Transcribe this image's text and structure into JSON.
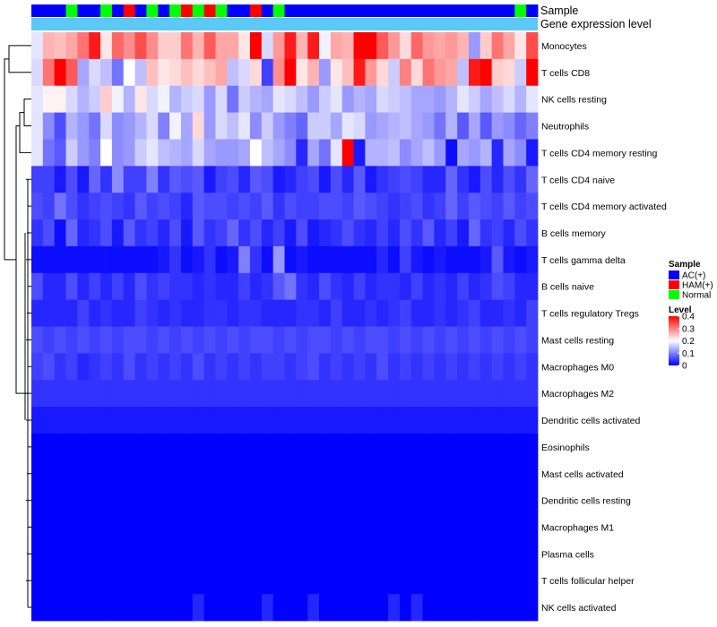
{
  "chart_data": {
    "type": "heatmap",
    "title": "",
    "annotation_labels": {
      "sample": "Sample",
      "expression": "Gene expression level"
    },
    "sample_legend": {
      "title": "Sample",
      "entries": [
        {
          "label": "AC(+)",
          "color": "#0000ff"
        },
        {
          "label": "HAM(+)",
          "color": "#ff0000"
        },
        {
          "label": "Normal",
          "color": "#00ff00"
        }
      ]
    },
    "level_legend": {
      "title": "Level",
      "min": 0,
      "max": 0.4,
      "ticks": [
        {
          "label": "0.4",
          "value": 0.4
        },
        {
          "label": "0.3",
          "value": 0.3
        },
        {
          "label": "0.2",
          "value": 0.2
        },
        {
          "label": "0.1",
          "value": 0.1
        },
        {
          "label": "0",
          "value": 0
        }
      ],
      "colors": [
        "#0000ff",
        "#ffffff",
        "#ff0000"
      ]
    },
    "expression_bar_color": "#5bc8f5",
    "sample_groups": [
      "AC(+)",
      "AC(+)",
      "AC(+)",
      "Normal",
      "AC(+)",
      "AC(+)",
      "Normal",
      "AC(+)",
      "HAM(+)",
      "AC(+)",
      "Normal",
      "AC(+)",
      "Normal",
      "HAM(+)",
      "Normal",
      "HAM(+)",
      "Normal",
      "AC(+)",
      "AC(+)",
      "HAM(+)",
      "AC(+)",
      "Normal",
      "AC(+)",
      "AC(+)",
      "AC(+)",
      "AC(+)",
      "AC(+)",
      "AC(+)",
      "AC(+)",
      "AC(+)",
      "AC(+)",
      "AC(+)",
      "AC(+)",
      "AC(+)",
      "AC(+)",
      "AC(+)",
      "AC(+)",
      "AC(+)",
      "AC(+)",
      "AC(+)",
      "AC(+)",
      "AC(+)",
      "Normal",
      "AC(+)"
    ],
    "row_labels": [
      "Monocytes",
      "T cells CD8",
      "NK cells resting",
      "Neutrophils",
      "T cells CD4 memory resting",
      "T cells CD4 naive",
      "T cells CD4 memory activated",
      "B cells memory",
      "T cells gamma delta",
      "B cells naive",
      "T cells regulatory  Tregs",
      "Mast cells resting",
      "Macrophages M0",
      "Macrophages M2",
      "Dendritic cells activated",
      "Eosinophils",
      "Mast cells activated",
      "Dendritic cells resting",
      "Macrophages M1",
      "Plasma cells",
      "T cells follicular helper",
      "NK cells activated"
    ],
    "values": [
      [
        0.18,
        0.26,
        0.25,
        0.27,
        0.31,
        0.38,
        0.22,
        0.32,
        0.29,
        0.34,
        0.29,
        0.24,
        0.24,
        0.31,
        0.26,
        0.33,
        0.27,
        0.27,
        0.22,
        0.4,
        0.17,
        0.28,
        0.38,
        0.26,
        0.38,
        0.19,
        0.27,
        0.26,
        0.4,
        0.4,
        0.33,
        0.28,
        0.23,
        0.32,
        0.28,
        0.27,
        0.28,
        0.26,
        0.12,
        0.24,
        0.31,
        0.27,
        0.22,
        0.34
      ],
      [
        0.17,
        0.31,
        0.4,
        0.33,
        0.13,
        0.17,
        0.15,
        0.09,
        0.2,
        0.15,
        0.25,
        0.22,
        0.23,
        0.25,
        0.23,
        0.25,
        0.27,
        0.15,
        0.17,
        0.23,
        0.05,
        0.29,
        0.4,
        0.22,
        0.26,
        0.12,
        0.22,
        0.25,
        0.38,
        0.28,
        0.23,
        0.16,
        0.3,
        0.23,
        0.31,
        0.28,
        0.27,
        0.15,
        0.38,
        0.4,
        0.24,
        0.23,
        0.16,
        0.4
      ],
      [
        0.18,
        0.21,
        0.21,
        0.17,
        0.14,
        0.16,
        0.24,
        0.19,
        0.14,
        0.22,
        0.17,
        0.19,
        0.14,
        0.16,
        0.17,
        0.12,
        0.17,
        0.09,
        0.16,
        0.14,
        0.13,
        0.18,
        0.17,
        0.15,
        0.12,
        0.16,
        0.18,
        0.12,
        0.14,
        0.13,
        0.17,
        0.16,
        0.15,
        0.13,
        0.13,
        0.12,
        0.14,
        0.18,
        0.16,
        0.13,
        0.15,
        0.17,
        0.14,
        0.18
      ],
      [
        0.18,
        0.11,
        0.06,
        0.14,
        0.12,
        0.09,
        0.17,
        0.11,
        0.12,
        0.14,
        0.17,
        0.1,
        0.19,
        0.13,
        0.23,
        0.12,
        0.17,
        0.15,
        0.18,
        0.11,
        0.16,
        0.12,
        0.1,
        0.08,
        0.16,
        0.16,
        0.13,
        0.18,
        0.17,
        0.12,
        0.13,
        0.14,
        0.15,
        0.13,
        0.12,
        0.09,
        0.14,
        0.07,
        0.13,
        0.07,
        0.12,
        0.11,
        0.08,
        0.1
      ],
      [
        0.18,
        0.09,
        0.07,
        0.16,
        0.12,
        0.1,
        0.2,
        0.11,
        0.12,
        0.16,
        0.18,
        0.15,
        0.14,
        0.13,
        0.17,
        0.13,
        0.12,
        0.12,
        0.13,
        0.2,
        0.15,
        0.13,
        0.11,
        0.03,
        0.13,
        0.09,
        0.18,
        0.4,
        0.02,
        0.14,
        0.14,
        0.15,
        0.11,
        0.13,
        0.15,
        0.12,
        0.01,
        0.13,
        0.12,
        0.14,
        0.03,
        0.13,
        0.11,
        0.02
      ],
      [
        0.05,
        0.05,
        0.02,
        0.06,
        0.02,
        0.08,
        0.04,
        0.11,
        0.05,
        0.05,
        0.1,
        0.04,
        0.07,
        0.06,
        0.07,
        0.02,
        0.05,
        0.06,
        0.03,
        0.07,
        0.06,
        0.02,
        0.03,
        0.05,
        0.06,
        0.02,
        0.06,
        0.03,
        0.07,
        0.02,
        0.04,
        0.05,
        0.06,
        0.05,
        0.03,
        0.03,
        0.08,
        0.04,
        0.02,
        0.06,
        0.03,
        0.06,
        0.04,
        0.08
      ],
      [
        0.06,
        0.05,
        0.09,
        0.06,
        0.04,
        0.05,
        0.06,
        0.05,
        0.04,
        0.07,
        0.05,
        0.06,
        0.05,
        0.03,
        0.07,
        0.06,
        0.06,
        0.05,
        0.06,
        0.05,
        0.07,
        0.04,
        0.06,
        0.05,
        0.05,
        0.06,
        0.06,
        0.05,
        0.07,
        0.06,
        0.05,
        0.04,
        0.05,
        0.06,
        0.04,
        0.05,
        0.08,
        0.05,
        0.07,
        0.06,
        0.05,
        0.07,
        0.05,
        0.06
      ],
      [
        0.04,
        0.06,
        0.01,
        0.08,
        0.03,
        0.04,
        0.06,
        0.02,
        0.07,
        0.04,
        0.05,
        0.03,
        0.06,
        0.02,
        0.07,
        0.04,
        0.05,
        0.08,
        0.04,
        0.06,
        0.03,
        0.05,
        0.02,
        0.06,
        0.02,
        0.03,
        0.04,
        0.06,
        0.04,
        0.03,
        0.05,
        0.03,
        0.06,
        0.04,
        0.07,
        0.03,
        0.05,
        0.02,
        0.08,
        0.04,
        0.05,
        0.03,
        0.06,
        0.04
      ],
      [
        0.01,
        0.01,
        0.01,
        0.01,
        0.01,
        0.01,
        0.01,
        0.01,
        0.01,
        0.01,
        0.01,
        0.02,
        0.04,
        0.01,
        0.02,
        0.04,
        0.01,
        0.02,
        0.1,
        0.04,
        0.01,
        0.12,
        0.01,
        0.02,
        0.01,
        0.01,
        0.01,
        0.01,
        0.01,
        0.01,
        0.03,
        0.01,
        0.05,
        0.02,
        0.01,
        0.02,
        0.01,
        0.01,
        0.01,
        0.02,
        0.07,
        0.02,
        0.01,
        0.02
      ],
      [
        0.06,
        0.03,
        0.03,
        0.06,
        0.03,
        0.05,
        0.03,
        0.05,
        0.03,
        0.06,
        0.04,
        0.05,
        0.04,
        0.04,
        0.03,
        0.04,
        0.03,
        0.03,
        0.05,
        0.03,
        0.04,
        0.07,
        0.09,
        0.04,
        0.03,
        0.06,
        0.04,
        0.03,
        0.05,
        0.03,
        0.04,
        0.04,
        0.03,
        0.05,
        0.03,
        0.04,
        0.03,
        0.05,
        0.03,
        0.04,
        0.06,
        0.05,
        0.03,
        0.03
      ],
      [
        0.03,
        0.03,
        0.03,
        0.03,
        0.05,
        0.03,
        0.04,
        0.03,
        0.03,
        0.05,
        0.04,
        0.03,
        0.04,
        0.03,
        0.03,
        0.04,
        0.04,
        0.03,
        0.04,
        0.04,
        0.03,
        0.03,
        0.03,
        0.04,
        0.04,
        0.03,
        0.05,
        0.03,
        0.03,
        0.04,
        0.03,
        0.04,
        0.05,
        0.03,
        0.03,
        0.04,
        0.03,
        0.04,
        0.05,
        0.03,
        0.03,
        0.04,
        0.03,
        0.05
      ],
      [
        0.06,
        0.05,
        0.06,
        0.05,
        0.06,
        0.05,
        0.06,
        0.05,
        0.06,
        0.06,
        0.05,
        0.06,
        0.05,
        0.06,
        0.05,
        0.06,
        0.05,
        0.06,
        0.05,
        0.06,
        0.06,
        0.05,
        0.06,
        0.05,
        0.06,
        0.06,
        0.05,
        0.06,
        0.05,
        0.06,
        0.06,
        0.05,
        0.06,
        0.05,
        0.06,
        0.05,
        0.06,
        0.05,
        0.06,
        0.05,
        0.06,
        0.05,
        0.06,
        0.05
      ],
      [
        0.05,
        0.06,
        0.04,
        0.05,
        0.03,
        0.04,
        0.05,
        0.04,
        0.06,
        0.04,
        0.05,
        0.04,
        0.05,
        0.04,
        0.06,
        0.04,
        0.05,
        0.04,
        0.05,
        0.04,
        0.05,
        0.05,
        0.04,
        0.05,
        0.06,
        0.04,
        0.05,
        0.04,
        0.05,
        0.04,
        0.06,
        0.04,
        0.05,
        0.04,
        0.05,
        0.04,
        0.05,
        0.04,
        0.05,
        0.04,
        0.05,
        0.04,
        0.05,
        0.04
      ],
      [
        0.04,
        0.04,
        0.04,
        0.04,
        0.04,
        0.04,
        0.04,
        0.04,
        0.04,
        0.04,
        0.04,
        0.04,
        0.04,
        0.04,
        0.04,
        0.04,
        0.04,
        0.04,
        0.04,
        0.04,
        0.04,
        0.04,
        0.04,
        0.04,
        0.04,
        0.04,
        0.04,
        0.04,
        0.04,
        0.04,
        0.04,
        0.04,
        0.04,
        0.04,
        0.04,
        0.04,
        0.04,
        0.04,
        0.04,
        0.04,
        0.04,
        0.04,
        0.04,
        0.04
      ],
      [
        0.02,
        0.02,
        0.02,
        0.02,
        0.02,
        0.02,
        0.02,
        0.02,
        0.02,
        0.02,
        0.02,
        0.02,
        0.02,
        0.02,
        0.02,
        0.02,
        0.02,
        0.02,
        0.02,
        0.02,
        0.02,
        0.02,
        0.02,
        0.02,
        0.02,
        0.02,
        0.02,
        0.02,
        0.02,
        0.02,
        0.02,
        0.02,
        0.02,
        0.02,
        0.02,
        0.02,
        0.02,
        0.02,
        0.02,
        0.02,
        0.02,
        0.02,
        0.02,
        0.02
      ],
      [
        0,
        0,
        0,
        0,
        0,
        0,
        0,
        0,
        0,
        0,
        0,
        0,
        0,
        0,
        0,
        0,
        0,
        0,
        0,
        0,
        0,
        0,
        0,
        0,
        0,
        0,
        0,
        0,
        0,
        0,
        0,
        0,
        0,
        0,
        0,
        0,
        0,
        0,
        0,
        0,
        0,
        0,
        0,
        0
      ],
      [
        0,
        0,
        0,
        0,
        0,
        0,
        0,
        0,
        0,
        0,
        0,
        0,
        0,
        0,
        0,
        0,
        0,
        0,
        0,
        0,
        0,
        0,
        0,
        0,
        0,
        0,
        0,
        0,
        0,
        0,
        0,
        0,
        0,
        0,
        0,
        0,
        0,
        0,
        0,
        0,
        0,
        0,
        0,
        0
      ],
      [
        0,
        0,
        0,
        0,
        0,
        0,
        0,
        0,
        0,
        0,
        0,
        0,
        0,
        0,
        0,
        0,
        0,
        0,
        0,
        0,
        0,
        0,
        0,
        0,
        0,
        0,
        0,
        0,
        0,
        0,
        0,
        0,
        0,
        0,
        0,
        0,
        0,
        0,
        0,
        0,
        0,
        0,
        0,
        0
      ],
      [
        0,
        0,
        0,
        0,
        0,
        0,
        0,
        0,
        0,
        0,
        0,
        0,
        0,
        0,
        0,
        0,
        0,
        0,
        0,
        0,
        0,
        0,
        0,
        0,
        0,
        0,
        0,
        0,
        0,
        0,
        0,
        0,
        0,
        0,
        0,
        0,
        0,
        0,
        0,
        0,
        0,
        0,
        0,
        0
      ],
      [
        0,
        0,
        0,
        0,
        0,
        0,
        0,
        0,
        0,
        0,
        0,
        0,
        0,
        0,
        0,
        0,
        0,
        0,
        0,
        0,
        0,
        0,
        0,
        0,
        0,
        0,
        0,
        0,
        0,
        0,
        0,
        0,
        0,
        0,
        0,
        0,
        0,
        0,
        0,
        0,
        0,
        0,
        0,
        0
      ],
      [
        0,
        0,
        0,
        0,
        0,
        0,
        0,
        0,
        0,
        0,
        0,
        0,
        0,
        0,
        0,
        0,
        0,
        0,
        0,
        0,
        0,
        0,
        0,
        0,
        0,
        0,
        0,
        0,
        0,
        0,
        0,
        0,
        0,
        0,
        0,
        0,
        0,
        0,
        0,
        0,
        0,
        0,
        0,
        0
      ],
      [
        0,
        0,
        0,
        0,
        0,
        0,
        0,
        0,
        0,
        0,
        0,
        0,
        0,
        0,
        0.03,
        0,
        0,
        0,
        0,
        0,
        0.03,
        0,
        0,
        0,
        0.03,
        0,
        0,
        0,
        0,
        0,
        0,
        0.03,
        0,
        0.03,
        0,
        0,
        0,
        0,
        0,
        0,
        0,
        0,
        0,
        0
      ]
    ]
  }
}
